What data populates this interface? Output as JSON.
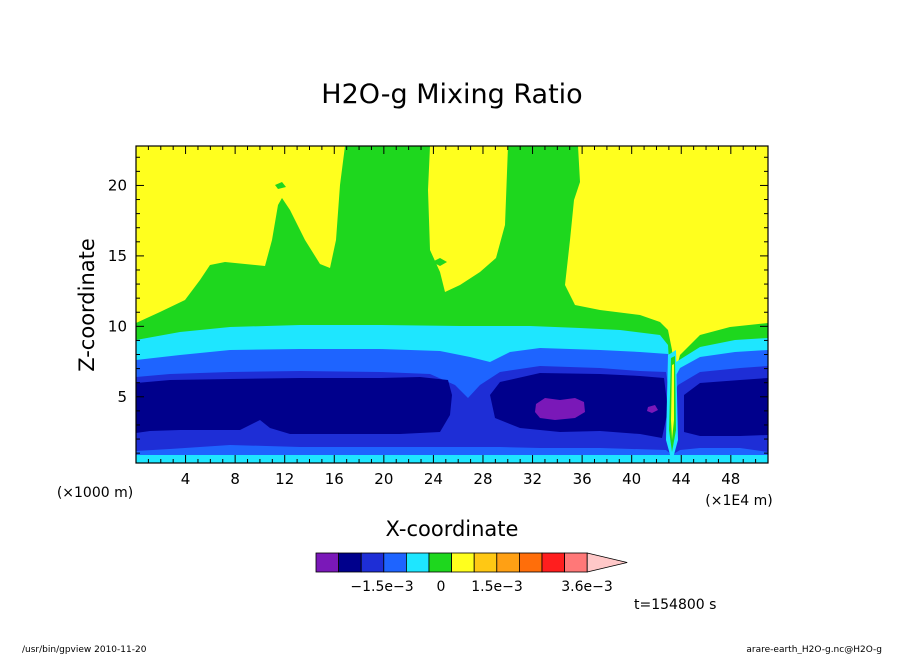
{
  "chart_data": {
    "type": "heatmap",
    "title": "H2O-g Mixing Ratio",
    "xlabel": "X-coordinate",
    "ylabel": "Z-coordinate",
    "x_unit_label": "(×1E4 m)",
    "y_unit_label": "(×1000 m)",
    "x_ticks": [
      "4",
      "8",
      "12",
      "16",
      "20",
      "24",
      "28",
      "32",
      "36",
      "40",
      "44",
      "48"
    ],
    "y_ticks": [
      "5",
      "10",
      "15",
      "20"
    ],
    "xlim": [
      0,
      51
    ],
    "ylim": [
      0.3,
      22.8
    ],
    "colorbar": {
      "colors": [
        "#7a18b8",
        "#00008c",
        "#1e2ed6",
        "#1e64ff",
        "#1ee6ff",
        "#1ed71e",
        "#ffff1e",
        "#ffc814",
        "#ffa014",
        "#ff6e0a",
        "#ff1e1e",
        "#ff7878",
        "#ffc8c8"
      ],
      "labels": [
        "−1.5e−3",
        "0",
        "1.5e−3",
        "3.6e−3"
      ]
    },
    "time_label": "t=154800 s",
    "footer_left": "/usr/bin/gpview  2010-11-20",
    "footer_right": "arare-earth_H2O-g.nc@H2O-g"
  }
}
